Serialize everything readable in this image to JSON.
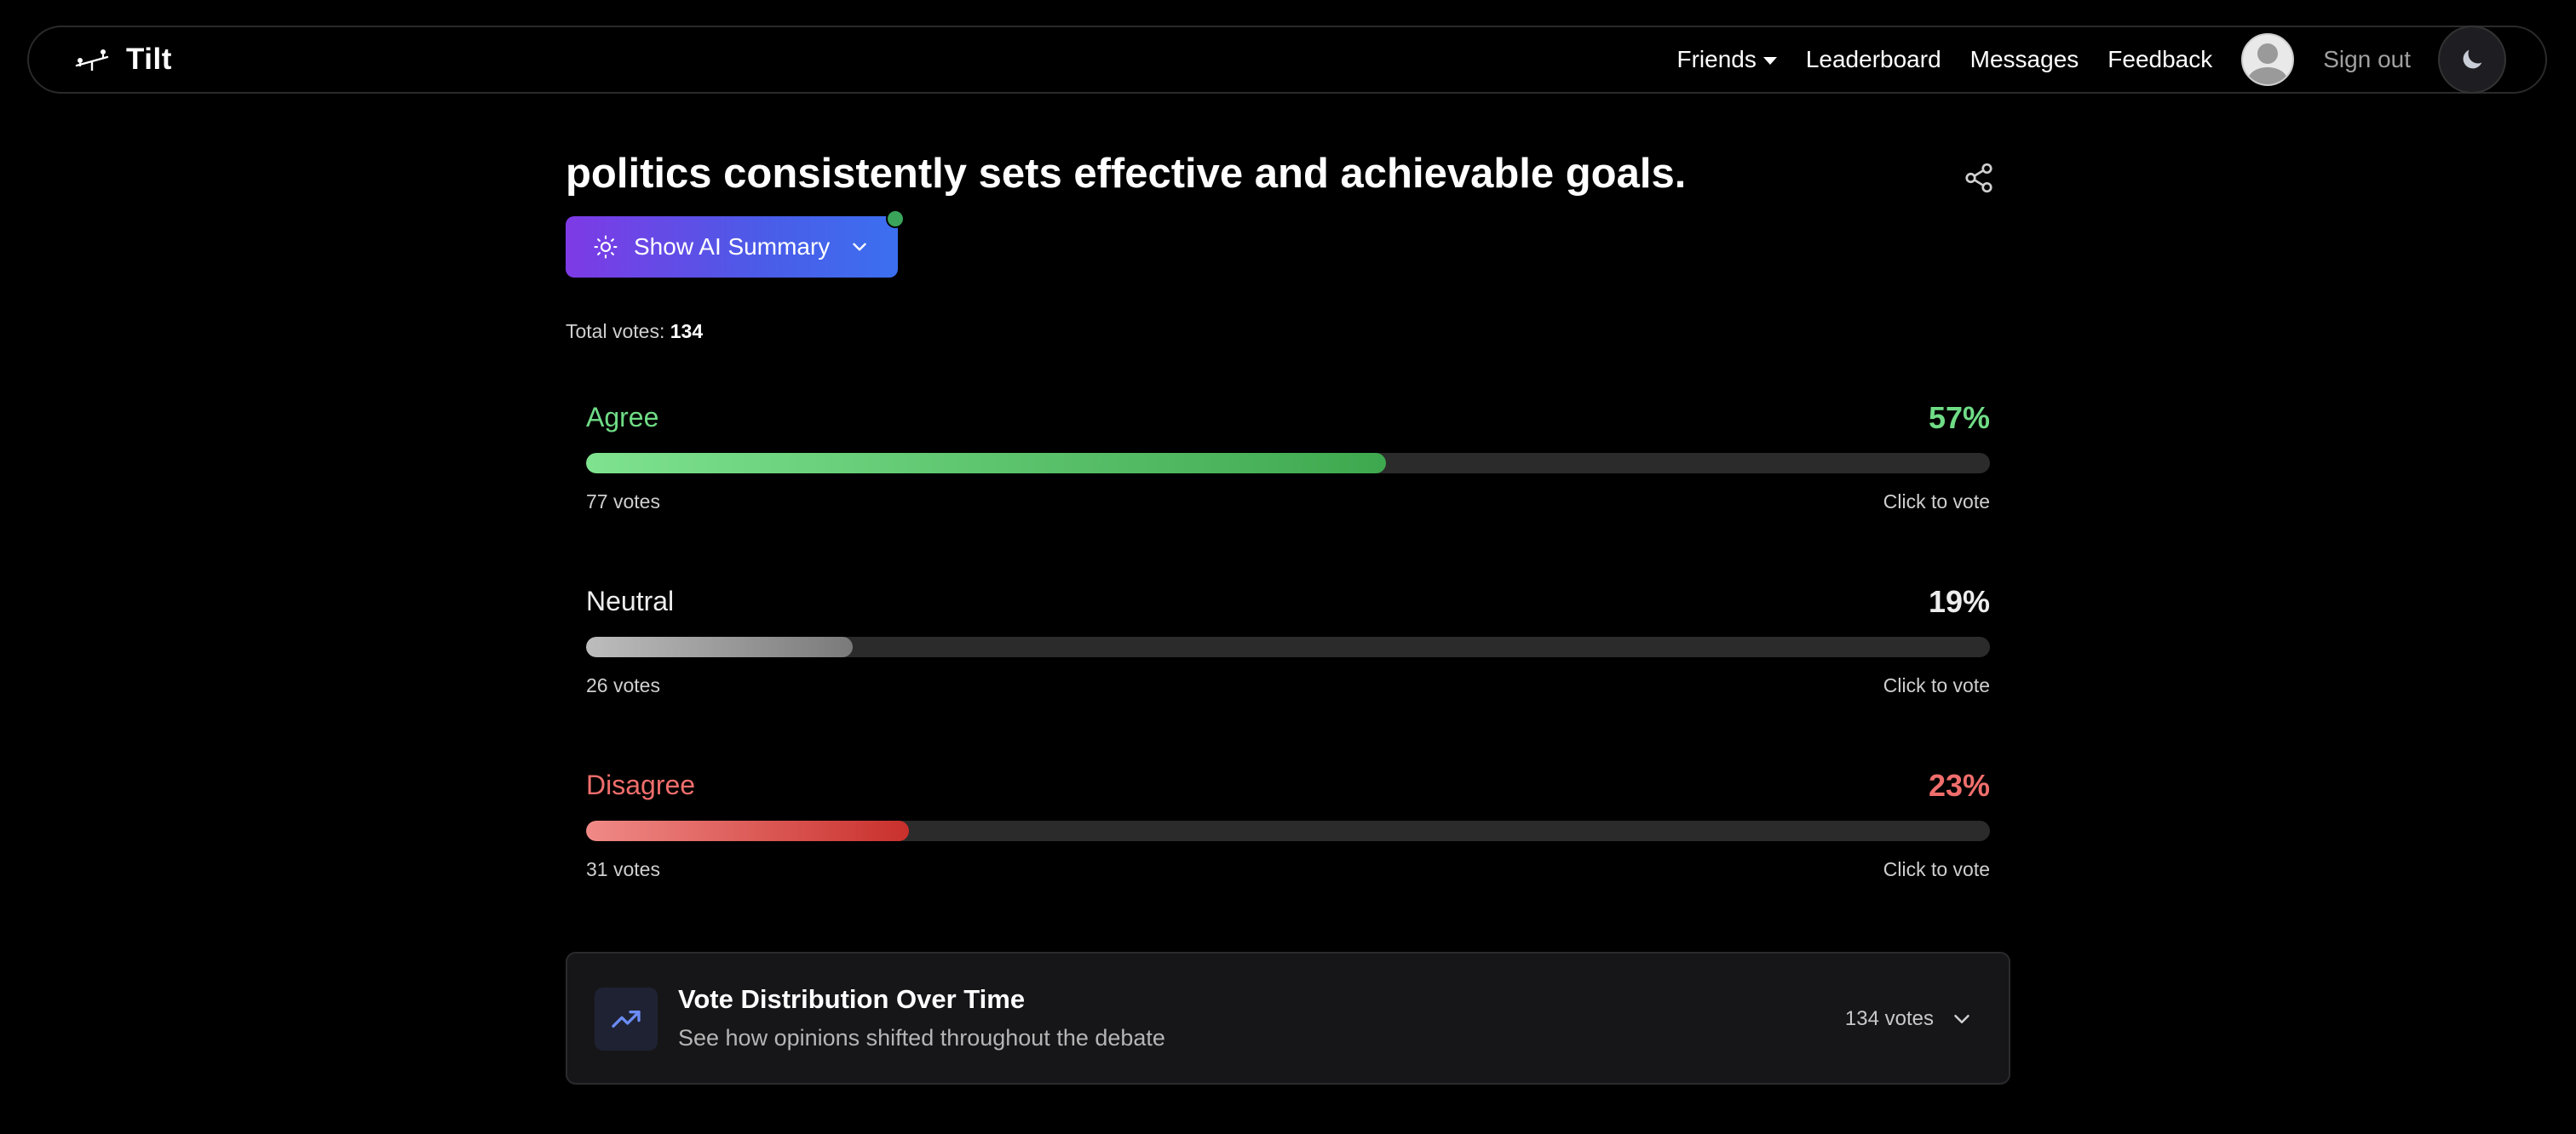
{
  "nav": {
    "brand": "Tilt",
    "links": {
      "friends": "Friends",
      "leaderboard": "Leaderboard",
      "messages": "Messages",
      "feedback": "Feedback"
    },
    "sign_out": "Sign out"
  },
  "debate": {
    "title": "politics consistently sets effective and achievable goals.",
    "ai_summary_label": "Show AI Summary",
    "total_votes_label": "Total votes:",
    "total_votes": "134",
    "options": [
      {
        "label": "Agree",
        "percent_text": "57%",
        "percent": 57,
        "votes_text": "77 votes",
        "cta": "Click to vote",
        "color": "#5ecf73"
      },
      {
        "label": "Neutral",
        "percent_text": "19%",
        "percent": 19,
        "votes_text": "26 votes",
        "cta": "Click to vote",
        "color": "#ededed"
      },
      {
        "label": "Disagree",
        "percent_text": "23%",
        "percent": 23,
        "votes_text": "31 votes",
        "cta": "Click to vote",
        "color": "#e8615f"
      }
    ]
  },
  "distribution": {
    "title": "Vote Distribution Over Time",
    "subtitle": "See how opinions shifted throughout the debate",
    "count": "134 votes"
  },
  "colors": {
    "agree": "#5ecf73",
    "neutral": "#9d9d9d",
    "disagree": "#e8615f",
    "ai_gradient_start": "#7e3ae5",
    "ai_gradient_end": "#3c6ff0",
    "indicator": "#3aa55a"
  },
  "icons": [
    "tilt-logo-icon",
    "chevron-down-icon",
    "avatar-icon",
    "moon-icon",
    "share-icon",
    "lightbulb-icon",
    "trending-up-icon"
  ]
}
